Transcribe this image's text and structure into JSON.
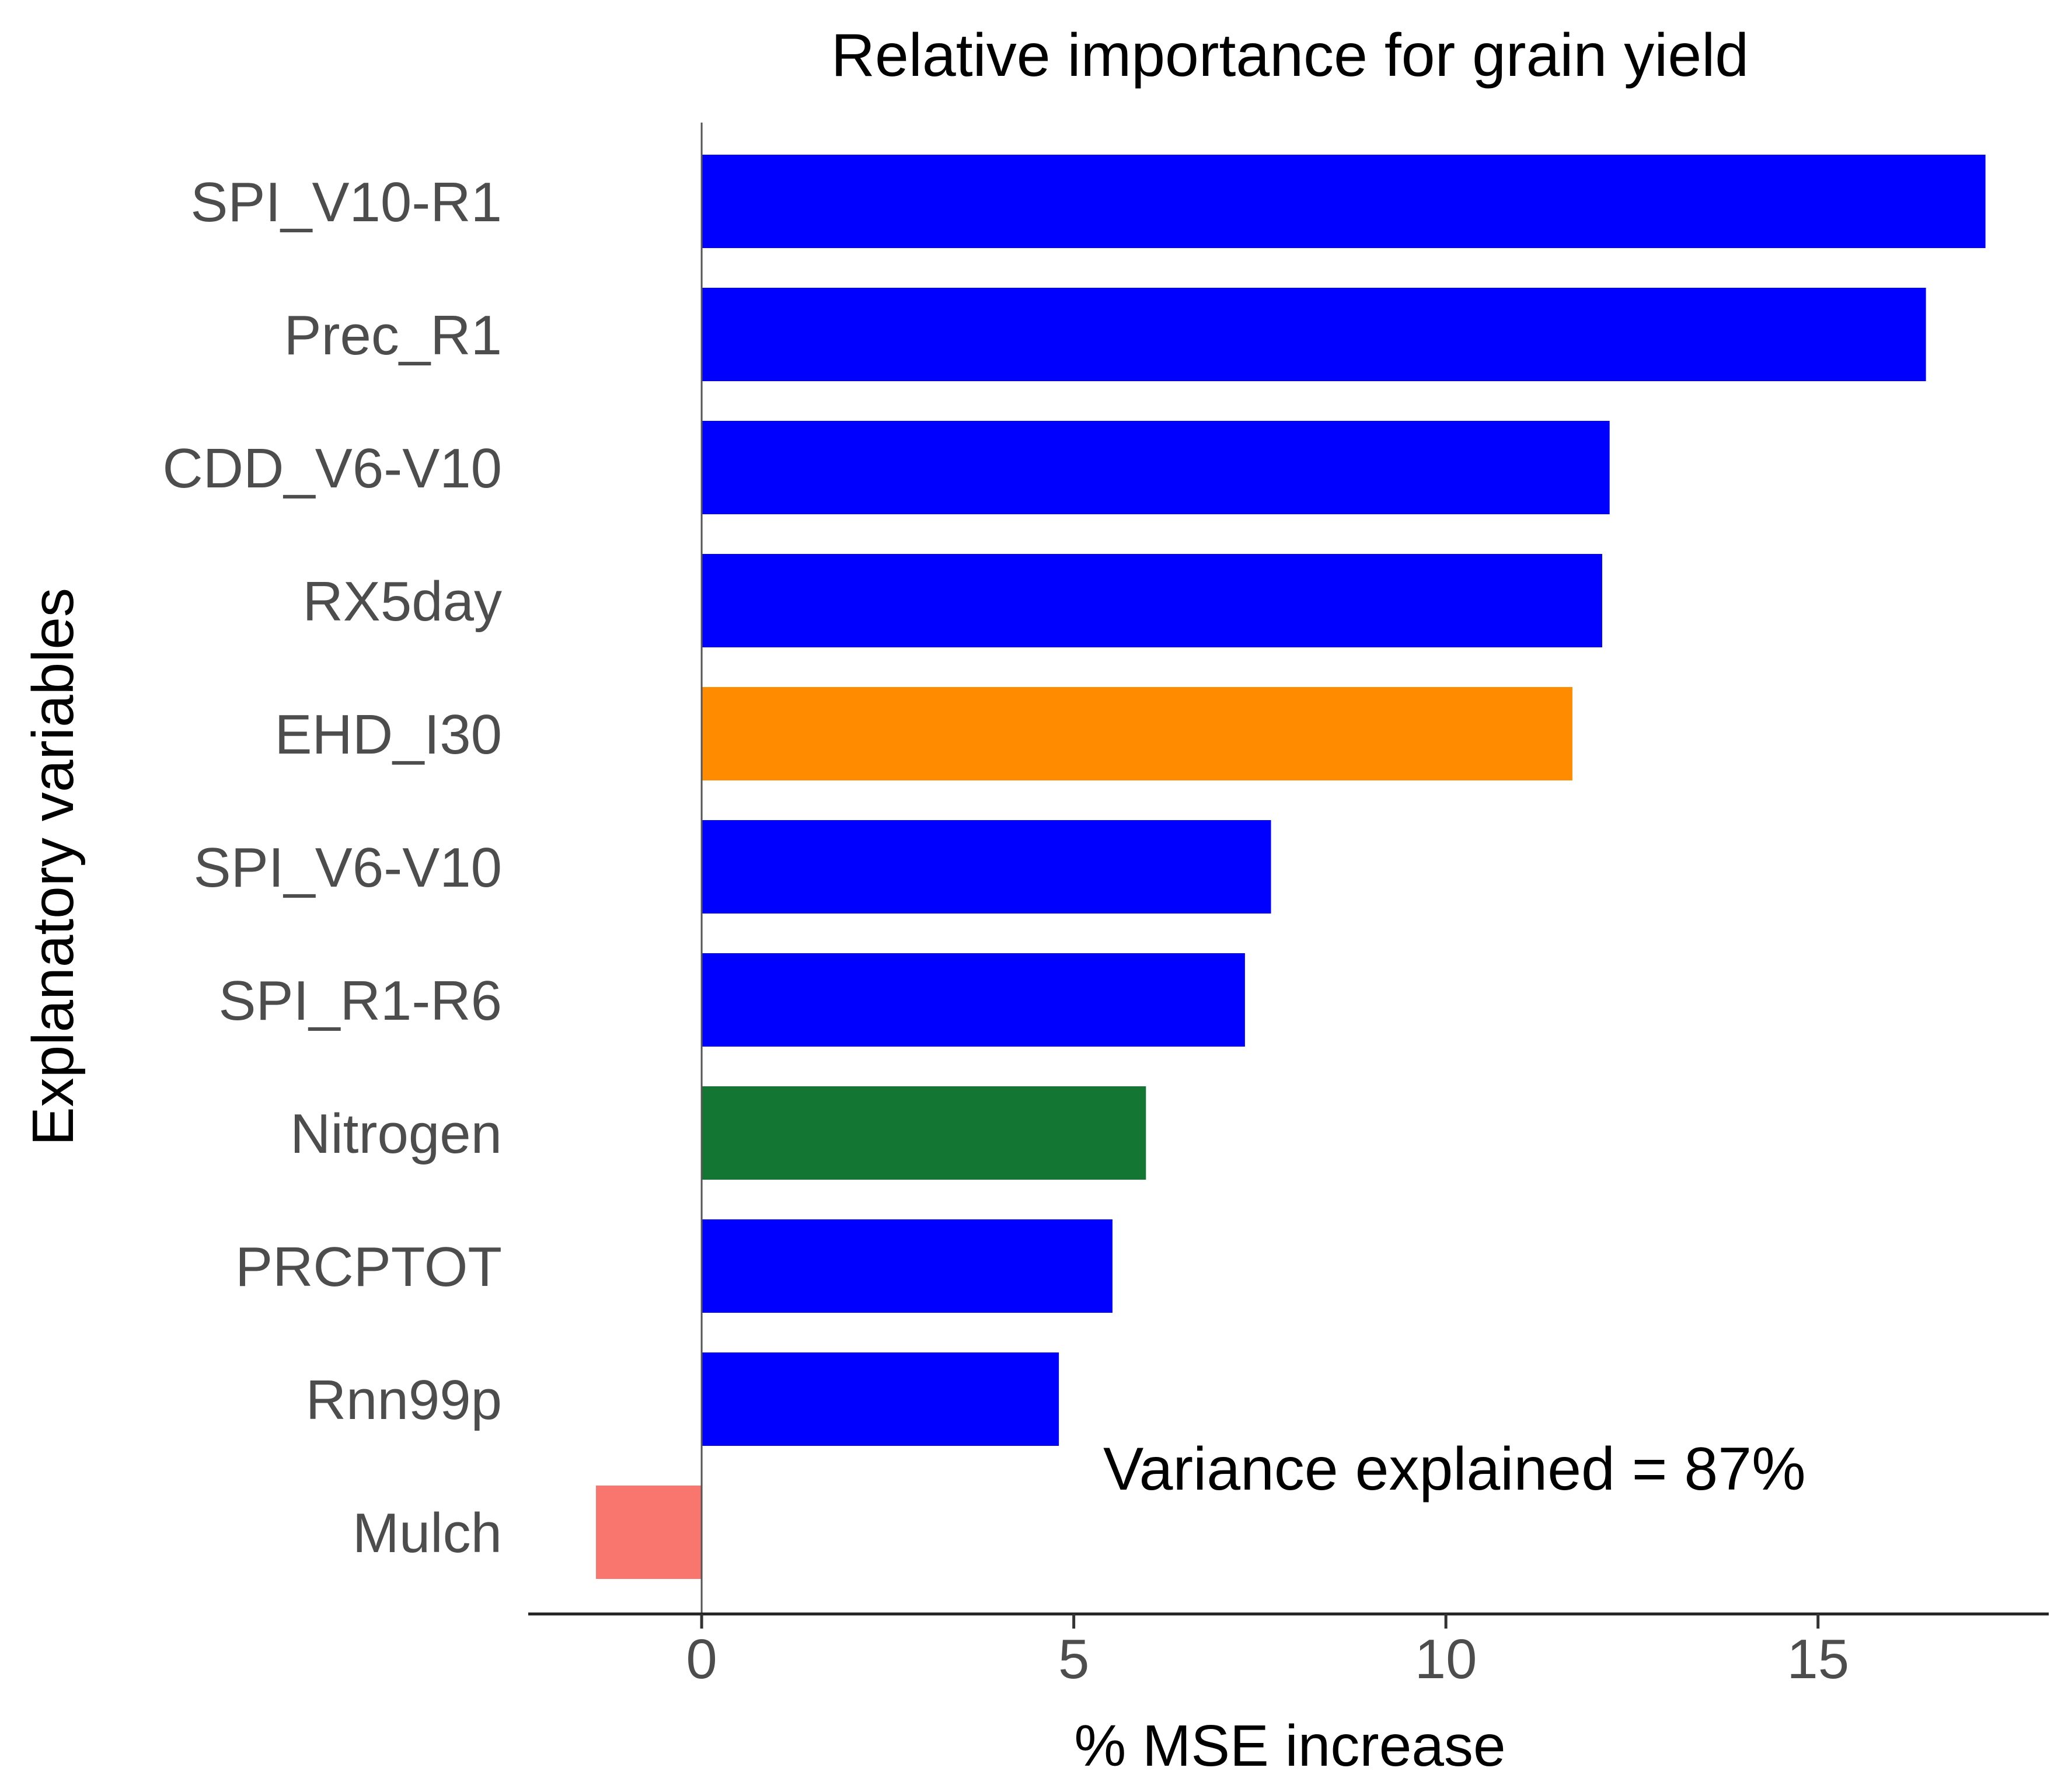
{
  "chart_data": {
    "type": "bar",
    "orientation": "horizontal",
    "title": "Relative importance for grain yield",
    "xlabel": "% MSE increase",
    "ylabel": "Explanatory variables",
    "categories": [
      "SPI_V10-R1",
      "Prec_R1",
      "CDD_V6-V10",
      "RX5day",
      "EHD_I30",
      "SPI_V6-V10",
      "SPI_R1-R6",
      "Nitrogen",
      "PRCPTOT",
      "Rnn99p",
      "Mulch"
    ],
    "values": [
      17.25,
      16.45,
      12.2,
      12.1,
      11.7,
      7.65,
      7.3,
      5.97,
      5.52,
      4.8,
      -1.42
    ],
    "colors": [
      "#0000ff",
      "#0000ff",
      "#0000ff",
      "#0000ff",
      "#ff8c00",
      "#0000ff",
      "#0000ff",
      "#137733",
      "#0000ff",
      "#0000ff",
      "#f8766d"
    ],
    "xlim": [
      -2.33,
      18.1
    ],
    "xticks": [
      0,
      5,
      10,
      15
    ],
    "grid": false,
    "legend": "none",
    "annotation": "Variance explained = 87%"
  }
}
